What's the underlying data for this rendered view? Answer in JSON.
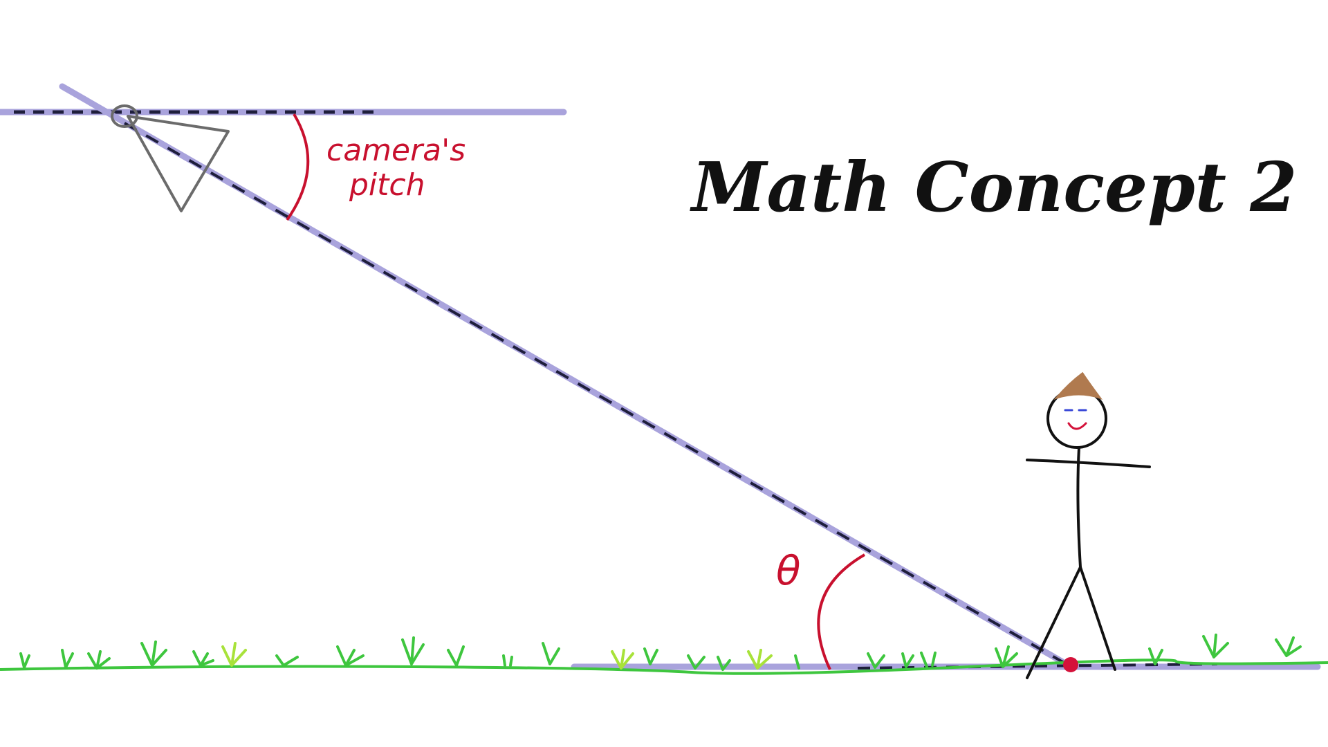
{
  "title": "Math Concept 2",
  "labels": {
    "camera_pitch_line1": "camera's",
    "camera_pitch_line2": "pitch",
    "theta": "θ"
  },
  "colors": {
    "guide_line": "#a9a3dc",
    "dash_line": "#1e1e3c",
    "angle_red": "#c8102e",
    "grass_green": "#3ec63e",
    "grass_light": "#a8e23a",
    "camera_gray": "#6b6b6b",
    "stick_black": "#111111",
    "hair_brown": "#b07a4f",
    "eye_blue": "#3a49d8",
    "target_red": "#d4123a"
  },
  "icons": {
    "camera": "camera-frustum-icon",
    "person": "stick-figure-icon",
    "target": "target-dot-icon"
  }
}
